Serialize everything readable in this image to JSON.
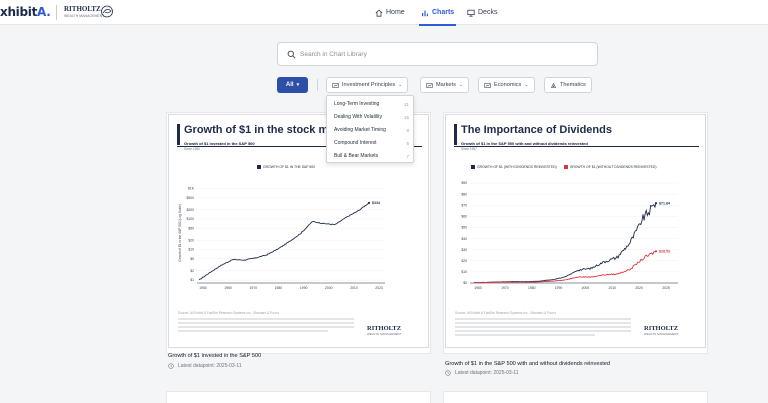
{
  "app": {
    "logo": "xhibit",
    "logo_accent": "A.",
    "partner_name": "RITHOLTZ",
    "partner_sub": "WEALTH MANAGEMENT"
  },
  "nav": {
    "home": "Home",
    "charts": "Charts",
    "decks": "Decks"
  },
  "search": {
    "placeholder": "Search in Chart Library",
    "value": ""
  },
  "filters": {
    "all_label": "All",
    "investment_principles": "Investment Principles",
    "markets": "Markets",
    "economics": "Economics",
    "thematics": "Thematics"
  },
  "dropdown": {
    "items": [
      {
        "label": "Long-Term Investing",
        "count": "21"
      },
      {
        "label": "Dealing With Volatility",
        "count": "16"
      },
      {
        "label": "Avoiding Market Timing",
        "count": "8"
      },
      {
        "label": "Compound Interest",
        "count": "5"
      },
      {
        "label": "Bull & Bear Markets",
        "count": "7"
      }
    ]
  },
  "cards": [
    {
      "title": "Growth of $1 in the stock m",
      "subtitle": "Growth of $1 invested in the S&P 500",
      "since": "Since 1950",
      "legend": [
        "GROWTH OF $1 IN THE S&P 500"
      ],
      "yaxis_label": "Growth of $1 in the S&P 500 (Log Scale)",
      "source": "Source: Ai Exhibit & FactSet Research Systems Inc., Standard & Poor's",
      "caption": "Growth of $1 invested in the S&P 500",
      "date": "Latest datapoint: 2025-03-11"
    },
    {
      "title": "The Importance of Dividends",
      "subtitle": "Growth of $1 in the S&P 500 with and without dividends reinvested",
      "since": "Since 1957",
      "legend": [
        "GROWTH OF $1 (WITH DIVIDENDS REINVESTED)",
        "GROWTH OF $1 (WITHOUT DIVIDENDS REINVESTED)"
      ],
      "source": "Source: Ai Exhibit & FactSet Research Systems Inc., Standard & Poor's",
      "caption": "Growth of $1 in the S&P 500 with and without dividends reinvested",
      "date": "Latest datapoint: 2025-03-11"
    }
  ],
  "colors": {
    "brand_blue": "#2e5bd8",
    "navy": "#1e2a4a",
    "red_series": "#d9343f"
  },
  "chart_data": [
    {
      "type": "line",
      "title": "Growth of $1 in the stock m",
      "ylabel": "Growth of $1 in the S&P 500 (Log Scale)",
      "x": [
        "1950",
        "1955",
        "1960",
        "1965",
        "1970",
        "1975",
        "1980",
        "1985",
        "1990",
        "1995",
        "2000",
        "2005",
        "2010",
        "2015",
        "2020",
        "2025"
      ],
      "y_ticks": [
        "$1",
        "$2",
        "$5",
        "$10",
        "$20",
        "$50",
        "$100",
        "$200",
        "$500",
        "$1K"
      ],
      "x_ticks": [
        "1950",
        "1960",
        "1970",
        "1980",
        "1990",
        "2000",
        "2010",
        "2023"
      ],
      "log_scale": true,
      "series": [
        {
          "name": "GROWTH OF $1 IN THE S&P 500",
          "values": [
            1,
            1.8,
            3.1,
            4.7,
            4.5,
            5.3,
            6.7,
            10.6,
            18.4,
            34.2,
            82,
            71,
            65,
            113,
            180,
            334
          ]
        }
      ],
      "end_label": "$334"
    },
    {
      "type": "line",
      "title": "The Importance of Dividends",
      "ylabel": "",
      "x": [
        "1957",
        "1962",
        "1967",
        "1972",
        "1977",
        "1982",
        "1987",
        "1992",
        "1997",
        "2002",
        "2007",
        "2012",
        "2017",
        "2022",
        "2025"
      ],
      "y_ticks": [
        "$0",
        "$10",
        "$20",
        "$30",
        "$40",
        "$50",
        "$60",
        "$70",
        "$80",
        "$90"
      ],
      "x_ticks": [
        "1960",
        "1970",
        "1980",
        "1990",
        "2000",
        "2010",
        "2020",
        "2025"
      ],
      "series": [
        {
          "name": "GROWTH OF $1 (WITH DIVIDENDS REINVESTED)",
          "values": [
            0.4,
            0.6,
            1.0,
            1.3,
            1.2,
            1.6,
            3.0,
            5.3,
            11.6,
            13.1,
            19.1,
            23.0,
            36.2,
            58.0,
            71.84
          ]
        },
        {
          "name": "GROWTH OF $1 (WITHOUT DIVIDENDS REINVESTED)",
          "values": [
            0.3,
            0.5,
            0.8,
            0.9,
            0.8,
            1.0,
            1.7,
            2.7,
            5.5,
            5.4,
            7.4,
            8.0,
            12.3,
            22.0,
            28.53
          ]
        }
      ],
      "end_labels": [
        "$71.84",
        "$28.53"
      ]
    }
  ]
}
